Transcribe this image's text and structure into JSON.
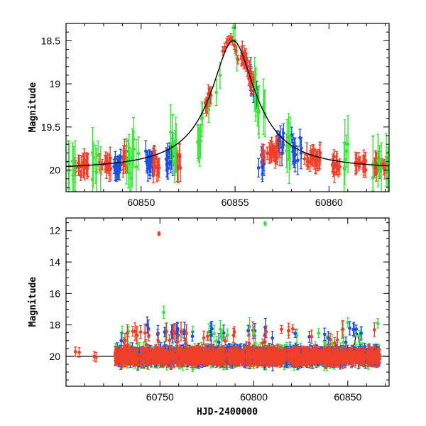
{
  "colors": {
    "blue": "#1f4fe0",
    "red": "#f0402a",
    "green": "#3ee23e",
    "model": "#000000"
  },
  "chart_data": [
    {
      "type": "scatter",
      "title": "",
      "xlabel": "",
      "ylabel": "Magnitude",
      "xlim": [
        60846,
        60863.2
      ],
      "ylim": [
        20.25,
        18.3
      ],
      "y_inverted": true,
      "xticks": [
        60850,
        60855,
        60860
      ],
      "yticks": [
        18.5,
        19,
        19.5,
        20
      ],
      "ytick_labels": [
        "18.5",
        "19",
        "19.5",
        "20"
      ],
      "model_curve": {
        "peak_x": 60854.9,
        "baseline": 20.0,
        "peak_mag": 18.5,
        "tE_days": 1.8
      },
      "series": [
        {
          "color": "blue",
          "clusters": [
            {
              "x0": 60848.5,
              "x1": 60849.0,
              "mag": 19.95,
              "scatter": 0.18,
              "err": 0.1,
              "n": 18
            },
            {
              "x0": 60850.2,
              "x1": 60850.7,
              "mag": 19.9,
              "scatter": 0.16,
              "err": 0.1,
              "n": 20
            },
            {
              "x0": 60851.3,
              "x1": 60851.7,
              "mag": 19.85,
              "scatter": 0.2,
              "err": 0.12,
              "n": 14
            },
            {
              "x0": 60855.8,
              "x1": 60856.6,
              "mag": 19.9,
              "scatter": 0.22,
              "err": 0.12,
              "n": 26
            },
            {
              "x0": 60857.2,
              "x1": 60857.6,
              "mag": 19.7,
              "scatter": 0.2,
              "err": 0.12,
              "n": 12
            },
            {
              "x0": 60858.0,
              "x1": 60858.6,
              "mag": 19.6,
              "scatter": 0.25,
              "err": 0.13,
              "n": 14
            }
          ]
        },
        {
          "color": "red",
          "clusters": [
            {
              "x0": 60846.4,
              "x1": 60847.2,
              "mag": 19.9,
              "scatter": 0.12,
              "err": 0.1,
              "n": 22
            },
            {
              "x0": 60847.8,
              "x1": 60848.4,
              "mag": 19.95,
              "scatter": 0.12,
              "err": 0.1,
              "n": 18
            },
            {
              "x0": 60849.0,
              "x1": 60849.4,
              "mag": 19.9,
              "scatter": 0.14,
              "err": 0.12,
              "n": 10
            },
            {
              "x0": 60850.6,
              "x1": 60851.0,
              "mag": 19.95,
              "scatter": 0.12,
              "err": 0.12,
              "n": 12
            },
            {
              "x0": 60851.8,
              "x1": 60852.1,
              "mag": 19.9,
              "scatter": 0.15,
              "err": 0.13,
              "n": 8
            },
            {
              "x0": 60853.4,
              "x1": 60853.8,
              "mag": 19.4,
              "scatter": 0.1,
              "err": 0.08,
              "n": 12
            },
            {
              "x0": 60855.3,
              "x1": 60856.0,
              "mag": 19.6,
              "scatter": 0.15,
              "err": 0.1,
              "n": 24
            },
            {
              "x0": 60856.4,
              "x1": 60857.4,
              "mag": 19.8,
              "scatter": 0.15,
              "err": 0.1,
              "n": 24
            },
            {
              "x0": 60858.7,
              "x1": 60859.7,
              "mag": 19.85,
              "scatter": 0.12,
              "err": 0.1,
              "n": 24
            },
            {
              "x0": 60860.1,
              "x1": 60860.6,
              "mag": 19.95,
              "scatter": 0.12,
              "err": 0.1,
              "n": 14
            },
            {
              "x0": 60861.4,
              "x1": 60862.0,
              "mag": 19.9,
              "scatter": 0.15,
              "err": 0.1,
              "n": 16
            },
            {
              "x0": 60862.4,
              "x1": 60863.1,
              "mag": 19.95,
              "scatter": 0.12,
              "err": 0.1,
              "n": 16
            }
          ]
        },
        {
          "color": "green",
          "clusters": [
            {
              "x0": 60846.0,
              "x1": 60846.5,
              "mag": 19.8,
              "scatter": 0.3,
              "err": 0.25,
              "n": 8
            },
            {
              "x0": 60847.4,
              "x1": 60847.9,
              "mag": 19.8,
              "scatter": 0.35,
              "err": 0.25,
              "n": 8
            },
            {
              "x0": 60849.2,
              "x1": 60849.9,
              "mag": 19.7,
              "scatter": 0.4,
              "err": 0.25,
              "n": 10
            },
            {
              "x0": 60851.5,
              "x1": 60851.9,
              "mag": 19.7,
              "scatter": 0.35,
              "err": 0.25,
              "n": 8
            },
            {
              "x0": 60853.0,
              "x1": 60853.3,
              "mag": 19.7,
              "scatter": 0.3,
              "err": 0.2,
              "n": 8
            },
            {
              "x0": 60856.0,
              "x1": 60856.6,
              "mag": 19.3,
              "scatter": 0.45,
              "err": 0.25,
              "n": 10
            },
            {
              "x0": 60857.6,
              "x1": 60858.0,
              "mag": 19.5,
              "scatter": 0.3,
              "err": 0.25,
              "n": 6
            },
            {
              "x0": 60860.8,
              "x1": 60861.2,
              "mag": 19.5,
              "scatter": 0.35,
              "err": 0.25,
              "n": 6
            },
            {
              "x0": 60862.3,
              "x1": 60862.8,
              "mag": 19.6,
              "scatter": 0.3,
              "err": 0.25,
              "n": 6
            },
            {
              "x0": 60863.0,
              "x1": 60863.2,
              "mag": 19.6,
              "scatter": 0.3,
              "err": 0.25,
              "n": 4
            }
          ]
        }
      ],
      "peak_points": {
        "color": "red",
        "points": [
          [
            60854.35,
            18.62
          ],
          [
            60854.45,
            18.58
          ],
          [
            60854.55,
            18.52
          ],
          [
            60854.62,
            18.5
          ],
          [
            60854.7,
            18.49
          ],
          [
            60854.78,
            18.47
          ],
          [
            60854.86,
            18.5
          ],
          [
            60854.95,
            18.55
          ],
          [
            60855.05,
            18.62
          ],
          [
            60855.15,
            18.72
          ]
        ]
      },
      "green_peak_points": {
        "color": "green",
        "points": [
          [
            60854.9,
            18.35
          ],
          [
            60855.0,
            18.5
          ],
          [
            60855.1,
            18.7
          ],
          [
            60854.2,
            18.9
          ],
          [
            60854.0,
            19.1
          ],
          [
            60853.6,
            19.3
          ]
        ]
      }
    },
    {
      "type": "scatter",
      "title": "",
      "xlabel": "HJD-2400000",
      "ylabel": "Magnitude",
      "xlim": [
        60700,
        60872
      ],
      "ylim": [
        21.9,
        11.2
      ],
      "y_inverted": true,
      "xticks": [
        60750,
        60800,
        60850
      ],
      "yticks": [
        12,
        14,
        16,
        18,
        20
      ],
      "ytick_labels": [
        "12",
        "14",
        "16",
        "18",
        "20"
      ],
      "model_curve": {
        "peak_x": 60854.9,
        "baseline": 20.0,
        "peak_mag": 18.5,
        "tE_days": 1.8
      },
      "band": {
        "x0": 60726,
        "x1": 60867,
        "mag": 20.0
      },
      "early_points": [
        {
          "x": 60705,
          "mag": 19.7,
          "err": 0.3,
          "color": "red"
        },
        {
          "x": 60707,
          "mag": 19.75,
          "err": 0.3,
          "color": "red"
        },
        {
          "x": 60715,
          "mag": 20.0,
          "err": 0.3,
          "color": "red"
        },
        {
          "x": 60716,
          "mag": 20.05,
          "err": 0.3,
          "color": "red"
        }
      ],
      "outliers": [
        {
          "x": 60749.5,
          "mag": 12.2,
          "err": 0.12,
          "color": "red"
        },
        {
          "x": 60806,
          "mag": 11.55,
          "err": 0.12,
          "color": "green"
        },
        {
          "x": 60752,
          "mag": 17.2,
          "err": 0.4,
          "color": "green"
        },
        {
          "x": 60752.5,
          "mag": 18.45,
          "err": 0.3,
          "color": "blue"
        },
        {
          "x": 60850,
          "mag": 17.85,
          "err": 0.3,
          "color": "green"
        },
        {
          "x": 60866,
          "mag": 17.9,
          "err": 0.3,
          "color": "green"
        },
        {
          "x": 60783,
          "mag": 18.65,
          "err": 0.3,
          "color": "green"
        },
        {
          "x": 60800,
          "mag": 18.5,
          "err": 0.3,
          "color": "green"
        }
      ]
    }
  ]
}
